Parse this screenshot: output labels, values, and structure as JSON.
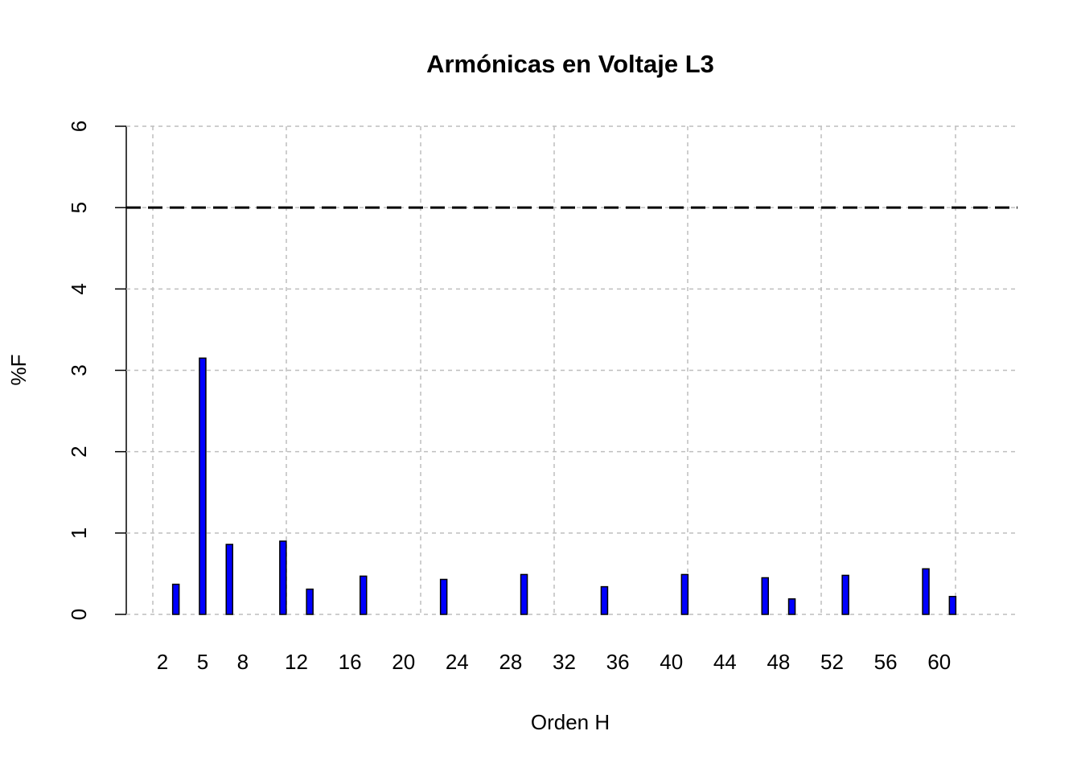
{
  "chart_data": {
    "type": "bar",
    "title": "Armónicas en Voltaje L3",
    "x_label": "Orden H",
    "y_label": "%F",
    "categories": [
      "2",
      null,
      null,
      "5",
      null,
      null,
      "8",
      null,
      null,
      null,
      "12",
      null,
      null,
      null,
      "16",
      null,
      null,
      null,
      "20",
      null,
      null,
      null,
      "24",
      null,
      null,
      null,
      "28",
      null,
      null,
      null,
      "32",
      null,
      null,
      null,
      "36",
      null,
      null,
      null,
      "40",
      null,
      null,
      null,
      "44",
      null,
      null,
      null,
      "48",
      null,
      null,
      null,
      "52",
      null,
      null,
      null,
      "56",
      null,
      null,
      null,
      "60",
      null,
      null,
      null
    ],
    "values": [
      0,
      0.37,
      0,
      3.15,
      0,
      0.86,
      0,
      0,
      0,
      0.9,
      0,
      0.31,
      0,
      0,
      0,
      0.47,
      0,
      0,
      0,
      0,
      0,
      0.43,
      0,
      0,
      0,
      0,
      0,
      0.49,
      0,
      0,
      0,
      0,
      0,
      0.34,
      0,
      0,
      0,
      0,
      0,
      0.49,
      0,
      0,
      0,
      0,
      0,
      0.45,
      0,
      0.19,
      0,
      0,
      0,
      0.48,
      0,
      0,
      0,
      0,
      0,
      0.56,
      0,
      0.22,
      0,
      0
    ],
    "color": "#0000ff",
    "ylim": [
      0,
      6
    ],
    "yticks": [
      0,
      1,
      2,
      3,
      4,
      5,
      6
    ],
    "grid": true,
    "reference_line": 5
  }
}
